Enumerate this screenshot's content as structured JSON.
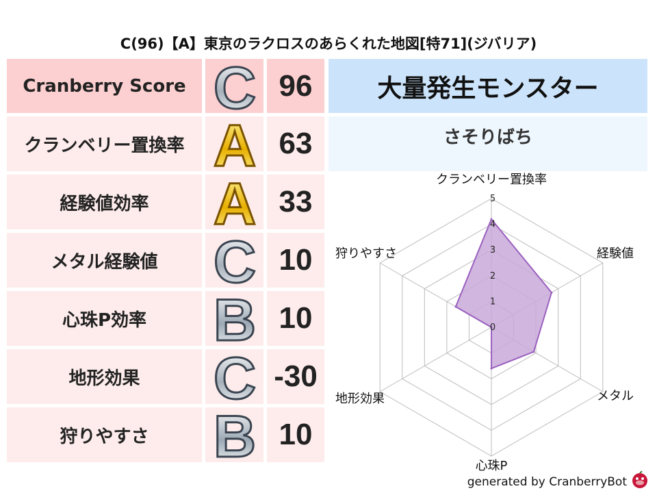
{
  "title": "C(96)【A】東京のラクロスのあらくれた地図[特71](ジバリア)",
  "score_table": {
    "rows": [
      {
        "label": "Cranberry Score",
        "grade": "C",
        "value": "96"
      },
      {
        "label": "クランベリー置換率",
        "grade": "A",
        "value": "63"
      },
      {
        "label": "経験値効率",
        "grade": "A",
        "value": "33"
      },
      {
        "label": "メタル経験値",
        "grade": "C",
        "value": "10"
      },
      {
        "label": "心珠P効率",
        "grade": "B",
        "value": "10"
      },
      {
        "label": "地形効果",
        "grade": "C",
        "value": "-30"
      },
      {
        "label": "狩りやすさ",
        "grade": "B",
        "value": "10"
      }
    ]
  },
  "monster": {
    "header": "大量発生モンスター",
    "name": "さそりばち"
  },
  "chart_data": {
    "type": "radar",
    "axes": [
      "クランベリー置換率",
      "経験値",
      "メタル",
      "心珠P",
      "地形効果",
      "狩りやすさ"
    ],
    "values": [
      4.2,
      2.7,
      1.9,
      1.6,
      0,
      1.6
    ],
    "range": [
      0,
      5
    ],
    "ticks": [
      "0",
      "1",
      "2",
      "3",
      "4",
      "5"
    ],
    "fill_color": "#c9aad9",
    "line_color": "#9a5fbf"
  },
  "footer": "generated by CranberryBot",
  "colors": {
    "header_row": "#fccfd0",
    "row": "#fdeceb",
    "monster_header": "#cce4fb",
    "monster_name": "#eef6fe"
  }
}
